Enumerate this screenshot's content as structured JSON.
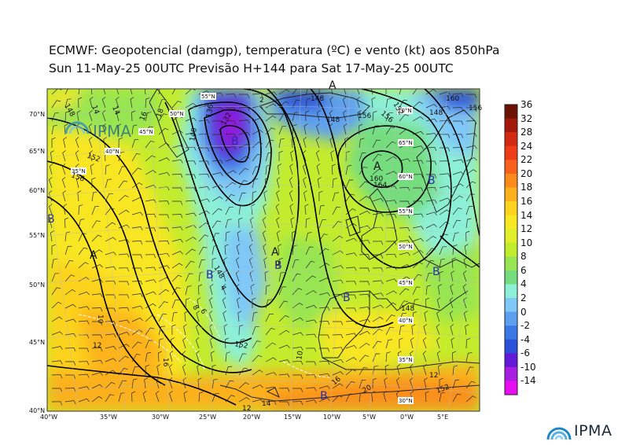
{
  "header": {
    "title_line1": "ECMWF:  Geopotencial (damgp), temperatura (ºC) e vento (kt) aos 850hPa",
    "title_line2": "Sun 11-May-25 00UTC Previsão H+144 para Sat 17-May-25 00UTC"
  },
  "logo": {
    "text": "IPMA"
  },
  "map": {
    "lat_labels": [
      "70°N",
      "65°N",
      "60°N",
      "55°N",
      "50°N",
      "45°N",
      "40°N"
    ],
    "lon_labels": [
      "40°W",
      "35°W",
      "30°W",
      "25°W",
      "20°W",
      "15°W",
      "10°W",
      "5°W",
      "0°W",
      "5°E"
    ],
    "inner_labels": [
      "55°N",
      "50°N",
      "45°N",
      "40°N",
      "35°N",
      "70°N",
      "65°N",
      "60°N",
      "55°N",
      "50°N",
      "45°N",
      "40°N",
      "35°N",
      "30°N"
    ],
    "pressure_centers": [
      "A",
      "A",
      "A",
      "A",
      "B",
      "B",
      "B",
      "B",
      "B",
      "B",
      "B",
      "B"
    ],
    "contour_labels": [
      "148",
      "14",
      "14",
      "18",
      "16",
      "132",
      "136",
      "140",
      "152",
      "156",
      "160",
      "160",
      "148",
      "156",
      "152",
      "156",
      "148",
      "164",
      "156",
      "152",
      "148",
      "148",
      "152",
      "148",
      "10",
      "12",
      "16",
      "20",
      "12",
      "14",
      "10",
      "8",
      "6",
      "4",
      "2",
      "0",
      "12",
      "16"
    ]
  },
  "colorbar": {
    "labels": [
      "36",
      "32",
      "28",
      "24",
      "22",
      "20",
      "18",
      "16",
      "14",
      "12",
      "10",
      "8",
      "6",
      "4",
      "2",
      "0",
      "-2",
      "-4",
      "-6",
      "-10",
      "-14"
    ],
    "colors": [
      "#6b1205",
      "#a5190c",
      "#d22a12",
      "#ee3c18",
      "#f7611b",
      "#fb8a1c",
      "#fcb01d",
      "#fcd31f",
      "#f8e823",
      "#e1ef2a",
      "#c1ec2c",
      "#97e553",
      "#76dd7f",
      "#8cf0d6",
      "#7fc8f7",
      "#5ea0f0",
      "#3a78e6",
      "#2b4fd9",
      "#6219d8",
      "#a81fe1",
      "#e70ff2"
    ]
  }
}
